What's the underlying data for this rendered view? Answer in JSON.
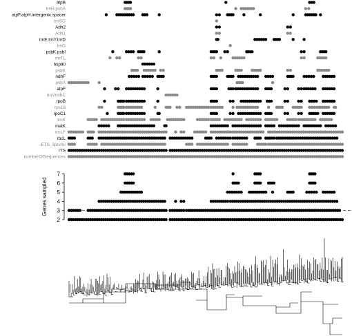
{
  "chart_data": [
    {
      "type": "scatter",
      "description_of_panel": "gene presence matrix",
      "rows": [
        {
          "label": "atpB",
          "color": "#000000",
          "segments": [
            [
              0.205,
              0.225
            ],
            [
              0.574,
              0.576
            ],
            [
              0.88,
              0.896
            ]
          ]
        },
        {
          "label": "trnH.psbA",
          "color": "#8a8a8a",
          "segments": [
            [
              0.205,
              0.225
            ],
            [
              0.61,
              0.61
            ],
            [
              0.63,
              0.675
            ],
            [
              0.866,
              0.877
            ]
          ]
        },
        {
          "label": "atpF.atpH.intergenic.spacer",
          "color": "#000000",
          "segments": [
            [
              0.136,
              0.136
            ],
            [
              0.175,
              0.235
            ],
            [
              0.27,
              0.285
            ],
            [
              0.33,
              0.33
            ],
            [
              0.54,
              0.55
            ],
            [
              0.58,
              0.6
            ],
            [
              0.64,
              0.64
            ],
            [
              0.7,
              0.7
            ],
            [
              0.82,
              0.82
            ],
            [
              0.866,
              0.903
            ],
            [
              0.92,
              0.92
            ]
          ]
        },
        {
          "label": "trnSG",
          "color": "#8a8a8a",
          "segments": [
            [
              0.54,
              0.54
            ]
          ]
        },
        {
          "label": "Adh2",
          "color": "#000000",
          "segments": [
            [
              0.54,
              0.55
            ],
            [
              0.8,
              0.81
            ]
          ]
        },
        {
          "label": "Adh1",
          "color": "#8a8a8a",
          "segments": [
            [
              0.54,
              0.55
            ],
            [
              0.8,
              0.81
            ]
          ]
        },
        {
          "label": "trnE.trnY.trnD",
          "color": "#000000",
          "segments": [
            [
              0.54,
              0.545
            ],
            [
              0.68,
              0.72
            ],
            [
              0.75,
              0.77
            ],
            [
              0.82,
              0.82
            ],
            [
              0.86,
              0.86
            ]
          ]
        },
        {
          "label": "trnG",
          "color": "#8a8a8a",
          "segments": [
            [
              0.59,
              0.59
            ]
          ]
        },
        {
          "label": "psbK.psbI",
          "color": "#000000",
          "segments": [
            [
              0.16,
              0.16
            ],
            [
              0.21,
              0.235
            ],
            [
              0.254,
              0.274
            ],
            [
              0.33,
              0.33
            ],
            [
              0.52,
              0.54
            ],
            [
              0.57,
              0.58
            ],
            [
              0.65,
              0.67
            ],
            [
              0.85,
              0.86
            ],
            [
              0.92,
              0.94
            ]
          ]
        },
        {
          "label": "trnTL",
          "color": "#8a8a8a",
          "segments": [
            [
              0.15,
              0.15
            ],
            [
              0.175,
              0.185
            ],
            [
              0.254,
              0.264
            ],
            [
              0.52,
              0.53
            ],
            [
              0.555,
              0.555
            ],
            [
              0.6,
              0.64
            ],
            [
              0.85,
              0.86
            ],
            [
              0.91,
              0.94
            ]
          ]
        },
        {
          "label": "hsp90",
          "color": "#000000",
          "segments": [
            [
              0.27,
              0.31
            ]
          ]
        },
        {
          "label": "psbK",
          "color": "#8a8a8a",
          "segments": [
            [
              0.23,
              0.25
            ],
            [
              0.275,
              0.315
            ],
            [
              0.335,
              0.345
            ],
            [
              0.54,
              0.56
            ],
            [
              0.61,
              0.63
            ],
            [
              0.67,
              0.7
            ],
            [
              0.8,
              0.81
            ],
            [
              0.91,
              0.95
            ]
          ]
        },
        {
          "label": "ndhF",
          "color": "#000000",
          "segments": [
            [
              0.22,
              0.255
            ],
            [
              0.27,
              0.305
            ],
            [
              0.325,
              0.345
            ],
            [
              0.52,
              0.54
            ],
            [
              0.58,
              0.6
            ],
            [
              0.62,
              0.69
            ],
            [
              0.72,
              0.745
            ],
            [
              0.8,
              0.82
            ],
            [
              0.86,
              0.895
            ],
            [
              0.93,
              0.97
            ]
          ]
        },
        {
          "label": "psbA",
          "color": "#8a8a8a",
          "segments": [
            [
              0.0,
              0.07
            ],
            [
              0.11,
              0.11
            ],
            [
              0.615,
              0.635
            ],
            [
              0.745,
              0.745
            ]
          ]
        },
        {
          "label": "atpF",
          "color": "#000000",
          "segments": [
            [
              0.13,
              0.13
            ],
            [
              0.17,
              0.18
            ],
            [
              0.21,
              0.275
            ],
            [
              0.325,
              0.325
            ],
            [
              0.52,
              0.54
            ],
            [
              0.585,
              0.6
            ],
            [
              0.61,
              0.69
            ],
            [
              0.72,
              0.74
            ],
            [
              0.79,
              0.8
            ],
            [
              0.84,
              0.85
            ],
            [
              0.86,
              0.9
            ],
            [
              0.93,
              0.97
            ]
          ]
        },
        {
          "label": "trnVndhC",
          "color": "#8a8a8a",
          "segments": [
            [
              0.355,
              0.395
            ]
          ]
        },
        {
          "label": "rpoB",
          "color": "#000000",
          "segments": [
            [
              0.13,
              0.13
            ],
            [
              0.18,
              0.2
            ],
            [
              0.21,
              0.275
            ],
            [
              0.325,
              0.325
            ],
            [
              0.52,
              0.54
            ],
            [
              0.59,
              0.6
            ],
            [
              0.63,
              0.7
            ],
            [
              0.725,
              0.74
            ],
            [
              0.79,
              0.8
            ],
            [
              0.84,
              0.85
            ],
            [
              0.88,
              0.905
            ],
            [
              0.93,
              0.97
            ]
          ]
        },
        {
          "label": "rps16",
          "color": "#8a8a8a",
          "segments": [
            [
              0.11,
              0.12
            ],
            [
              0.18,
              0.2
            ],
            [
              0.21,
              0.265
            ],
            [
              0.315,
              0.315
            ],
            [
              0.355,
              0.37
            ],
            [
              0.395,
              0.405
            ],
            [
              0.43,
              0.51
            ],
            [
              0.52,
              0.56
            ],
            [
              0.6,
              0.6
            ],
            [
              0.615,
              0.69
            ],
            [
              0.73,
              0.73
            ],
            [
              0.76,
              0.78
            ],
            [
              0.82,
              0.85
            ],
            [
              0.88,
              0.915
            ],
            [
              0.92,
              0.95
            ],
            [
              0.97,
              0.975
            ]
          ]
        },
        {
          "label": "rpoC1",
          "color": "#000000",
          "segments": [
            [
              0.14,
              0.14
            ],
            [
              0.18,
              0.2
            ],
            [
              0.21,
              0.275
            ],
            [
              0.325,
              0.33
            ],
            [
              0.52,
              0.54
            ],
            [
              0.59,
              0.6
            ],
            [
              0.62,
              0.7
            ],
            [
              0.72,
              0.74
            ],
            [
              0.79,
              0.8
            ],
            [
              0.84,
              0.85
            ],
            [
              0.88,
              0.91
            ],
            [
              0.93,
              0.97
            ]
          ]
        },
        {
          "label": "trnK",
          "color": "#8a8a8a",
          "segments": [
            [
              0.07,
              0.1
            ],
            [
              0.12,
              0.2
            ],
            [
              0.21,
              0.275
            ],
            [
              0.3,
              0.33
            ],
            [
              0.36,
              0.42
            ],
            [
              0.47,
              0.51
            ],
            [
              0.52,
              0.55
            ],
            [
              0.57,
              0.63
            ],
            [
              0.65,
              0.7
            ],
            [
              0.72,
              0.76
            ],
            [
              0.8,
              0.83
            ],
            [
              0.84,
              0.9
            ],
            [
              0.92,
              0.96
            ]
          ]
        },
        {
          "label": "matK",
          "color": "#000000",
          "segments": [
            [
              0.11,
              0.145
            ],
            [
              0.18,
              0.31
            ],
            [
              0.35,
              0.355
            ],
            [
              0.52,
              0.58
            ],
            [
              0.6,
              0.7
            ],
            [
              0.72,
              0.75
            ],
            [
              0.77,
              0.84
            ],
            [
              0.86,
              0.92
            ],
            [
              0.94,
              0.975
            ]
          ]
        },
        {
          "label": "trnLF",
          "color": "#8a8a8a",
          "segments": [
            [
              0.0,
              0.05
            ],
            [
              0.07,
              0.09
            ],
            [
              0.11,
              0.355
            ],
            [
              0.39,
              0.39
            ],
            [
              0.41,
              0.42
            ],
            [
              0.46,
              0.5
            ],
            [
              0.52,
              0.71
            ],
            [
              0.73,
              1.0
            ]
          ]
        },
        {
          "label": "rbcL",
          "color": "#000000",
          "segments": [
            [
              0.0,
              0.02
            ],
            [
              0.07,
              0.085
            ],
            [
              0.11,
              0.35
            ],
            [
              0.37,
              0.45
            ],
            [
              0.5,
              0.52
            ],
            [
              0.54,
              0.59
            ],
            [
              0.6,
              0.65
            ],
            [
              0.68,
              0.7
            ],
            [
              0.72,
              0.75
            ],
            [
              0.76,
              0.98
            ]
          ]
        },
        {
          "label": "ETS_3prime",
          "color": "#8a8a8a",
          "segments": [
            [
              0.0,
              0.02
            ],
            [
              0.07,
              0.1
            ],
            [
              0.12,
              0.35
            ],
            [
              0.43,
              0.45
            ],
            [
              0.47,
              0.58
            ],
            [
              0.6,
              0.65
            ],
            [
              0.69,
              0.72
            ],
            [
              0.73,
              1.0
            ]
          ]
        },
        {
          "label": "ITS",
          "color": "#000000",
          "segments": [
            [
              0.0,
              0.355
            ],
            [
              0.37,
              1.0
            ]
          ]
        },
        {
          "label": "numberOfSequences",
          "color": "#8a8a8a",
          "segments": [
            [
              0.0,
              1.0
            ]
          ]
        }
      ]
    },
    {
      "type": "scatter",
      "ylabel": "Genes sampled",
      "ylim": [
        1.6,
        7.4
      ],
      "yticks": [
        2,
        3,
        4,
        5,
        6,
        7
      ],
      "reference_line": 3,
      "rows": [
        {
          "value": 7,
          "segments": [
            [
              0.205,
              0.235
            ],
            [
              0.6,
              0.6
            ],
            [
              0.68,
              0.7
            ],
            [
              0.88,
              0.9
            ]
          ]
        },
        {
          "value": 6,
          "segments": [
            [
              0.205,
              0.235
            ],
            [
              0.6,
              0.62
            ],
            [
              0.68,
              0.7
            ],
            [
              0.73,
              0.75
            ],
            [
              0.88,
              0.9
            ]
          ]
        },
        {
          "value": 5,
          "segments": [
            [
              0.19,
              0.265
            ],
            [
              0.58,
              0.63
            ],
            [
              0.66,
              0.72
            ],
            [
              0.745,
              0.745
            ],
            [
              0.8,
              0.82
            ],
            [
              0.87,
              0.905
            ],
            [
              0.93,
              0.97
            ]
          ]
        },
        {
          "value": 4,
          "segments": [
            [
              0.11,
              0.35
            ],
            [
              0.39,
              0.39
            ],
            [
              0.41,
              0.42
            ],
            [
              0.52,
              0.58
            ],
            [
              0.59,
              0.98
            ]
          ]
        },
        {
          "value": 3,
          "segments": [
            [
              0.0,
              0.04
            ],
            [
              0.07,
              0.355
            ],
            [
              0.37,
              0.42
            ],
            [
              0.43,
              0.99
            ]
          ]
        },
        {
          "value": 2,
          "segments": [
            [
              0.0,
              0.355
            ],
            [
              0.37,
              1.0
            ]
          ]
        }
      ]
    }
  ]
}
